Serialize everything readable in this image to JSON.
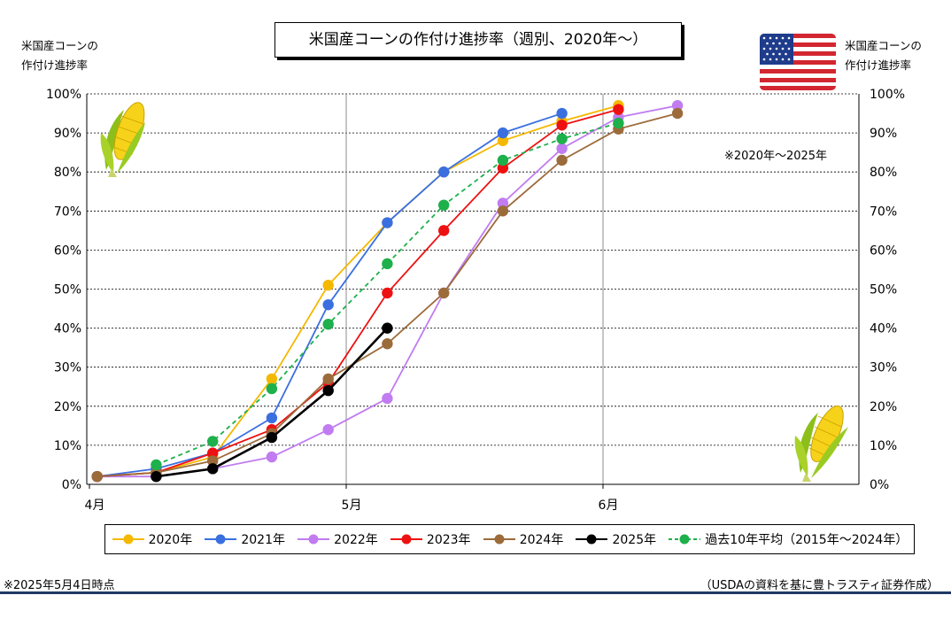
{
  "title": "米国産コーンの作付け進捗率（週別、2020年～）",
  "left_axis_title": [
    "米国産コーンの",
    "作付け進捗率"
  ],
  "right_axis_title": [
    "米国産コーンの",
    "作付け進捗率"
  ],
  "note_right": "※2020年～2025年",
  "footer_left": "※2025年5月4日時点",
  "footer_right": "（USDAの資料を基に豊トラスティ証券作成）",
  "icons": [
    "us-flag-icon",
    "corn-icon"
  ],
  "chart_data": {
    "type": "line",
    "x_unit": "month-fraction (4月=0, 5月=1, 6月=2)",
    "x_ticks": [
      "4月",
      "5月",
      "6月"
    ],
    "y_ticks": [
      "0%",
      "10%",
      "20%",
      "30%",
      "40%",
      "50%",
      "60%",
      "70%",
      "80%",
      "90%",
      "100%"
    ],
    "ylim": [
      0,
      100
    ],
    "grid": true,
    "legend_position": "bottom",
    "series": [
      {
        "name": "2020年",
        "color": "#F5B800",
        "dashed": false,
        "points": [
          [
            0.03,
            2
          ],
          [
            0.26,
            3
          ],
          [
            0.48,
            7
          ],
          [
            0.71,
            27
          ],
          [
            0.93,
            51
          ],
          [
            1.16,
            67
          ],
          [
            1.38,
            80
          ],
          [
            1.61,
            88
          ],
          [
            1.84,
            93
          ],
          [
            2.06,
            97
          ]
        ]
      },
      {
        "name": "2021年",
        "color": "#3A6FE0",
        "dashed": false,
        "points": [
          [
            0.03,
            2
          ],
          [
            0.26,
            4
          ],
          [
            0.48,
            8
          ],
          [
            0.71,
            17
          ],
          [
            0.93,
            46
          ],
          [
            1.16,
            67
          ],
          [
            1.38,
            80
          ],
          [
            1.61,
            90
          ],
          [
            1.84,
            95
          ]
        ]
      },
      {
        "name": "2022年",
        "color": "#C07CF0",
        "dashed": false,
        "points": [
          [
            0.03,
            2
          ],
          [
            0.26,
            2
          ],
          [
            0.48,
            4
          ],
          [
            0.71,
            7
          ],
          [
            0.93,
            14
          ],
          [
            1.16,
            22
          ],
          [
            1.38,
            49
          ],
          [
            1.61,
            72
          ],
          [
            1.84,
            86
          ],
          [
            2.06,
            94
          ],
          [
            2.29,
            97
          ]
        ]
      },
      {
        "name": "2023年",
        "color": "#EE1111",
        "dashed": false,
        "points": [
          [
            0.03,
            2
          ],
          [
            0.26,
            3
          ],
          [
            0.48,
            8
          ],
          [
            0.71,
            14
          ],
          [
            0.93,
            26
          ],
          [
            1.16,
            49
          ],
          [
            1.38,
            65
          ],
          [
            1.61,
            81
          ],
          [
            1.84,
            92
          ],
          [
            2.06,
            96
          ]
        ]
      },
      {
        "name": "2024年",
        "color": "#9C6B3A",
        "dashed": false,
        "points": [
          [
            0.03,
            2
          ],
          [
            0.26,
            3
          ],
          [
            0.48,
            6
          ],
          [
            0.71,
            13
          ],
          [
            0.93,
            27
          ],
          [
            1.16,
            36
          ],
          [
            1.38,
            49
          ],
          [
            1.61,
            70
          ],
          [
            1.84,
            83
          ],
          [
            2.06,
            91
          ],
          [
            2.29,
            95
          ]
        ]
      },
      {
        "name": "2025年",
        "color": "#000000",
        "dashed": false,
        "points": [
          [
            0.26,
            2
          ],
          [
            0.48,
            4
          ],
          [
            0.71,
            12
          ],
          [
            0.93,
            24
          ],
          [
            1.16,
            40
          ]
        ]
      },
      {
        "name": "過去10年平均（2015年～2024年）",
        "color": "#1DB04B",
        "dashed": true,
        "points": [
          [
            0.26,
            5
          ],
          [
            0.48,
            11
          ],
          [
            0.71,
            24.5
          ],
          [
            0.93,
            41
          ],
          [
            1.16,
            56.5
          ],
          [
            1.38,
            71.5
          ],
          [
            1.61,
            83
          ],
          [
            1.84,
            88.5
          ],
          [
            2.06,
            92.5
          ]
        ]
      }
    ]
  }
}
